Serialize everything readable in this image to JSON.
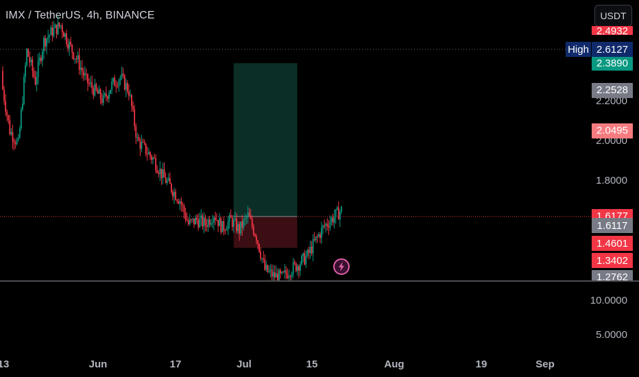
{
  "header": {
    "title": "IMX / TetherUS, 4h, BINANCE",
    "currency_button": "USDT"
  },
  "price_tags": [
    {
      "label": "2.4932",
      "color": "#f23645",
      "price": 2.63,
      "partial": true
    },
    {
      "label": "2.3890",
      "color": "#089981",
      "price": 2.389
    },
    {
      "label": "2.2528",
      "color": "#787b86",
      "price": 2.2528
    },
    {
      "label": "2.0495",
      "color": "#f77c80",
      "price": 2.0495
    },
    {
      "label": "1.6177",
      "color": "#f23645",
      "price": 1.6177
    },
    {
      "label": "1.6117",
      "color": "#787b86",
      "price": 1.6117
    },
    {
      "label": "1.4601",
      "color": "#f23645",
      "price": 1.4601
    },
    {
      "label": "1.3402",
      "color": "#f23645",
      "price": 1.3402
    },
    {
      "label": "1.2762",
      "color": "#787b86",
      "price": 1.2762,
      "partial": true
    }
  ],
  "high_marker": {
    "label": "High",
    "value": "2.6127"
  },
  "volume_axis": {
    "ticks": [
      "10.0000",
      "5.0000"
    ]
  },
  "position_tool": {
    "entry": 1.6177,
    "target": 2.389,
    "stop": 1.4601,
    "start_day": 27,
    "end_day": 34,
    "profit_color": "#0b2f27",
    "loss_color": "#3a0e12"
  },
  "colors": {
    "up": "#089981",
    "down": "#f23645",
    "background": "#000000",
    "dotted_last": "#f23645"
  },
  "icons": {
    "alert": "lightning-icon"
  },
  "chart_data": {
    "type": "candlestick",
    "symbol": "IMX / TetherUS",
    "interval": "4h",
    "exchange": "BINANCE",
    "x_axis_ticks": [
      "13",
      "Jun",
      "17",
      "Jul",
      "15",
      "Aug",
      "19",
      "Sep"
    ],
    "y_axis_ticks": [
      "2.2000",
      "2.0000",
      "1.8000"
    ],
    "ylim": [
      1.27,
      2.75
    ],
    "series": [
      {
        "name": "close",
        "approx_daily_close": [
          2.3,
          2.05,
          1.98,
          2.45,
          2.3,
          2.5,
          2.55,
          2.58,
          2.48,
          2.4,
          2.3,
          2.25,
          2.2,
          2.28,
          2.32,
          2.25,
          2.0,
          1.95,
          1.9,
          1.82,
          1.76,
          1.7,
          1.58,
          1.6,
          1.58,
          1.63,
          1.56,
          1.6,
          1.55,
          1.62,
          1.52,
          1.35,
          1.32,
          1.31,
          1.35,
          1.38,
          1.42,
          1.5,
          1.57,
          1.61,
          1.65
        ]
      }
    ],
    "last_price": 1.6177,
    "high": 2.6127,
    "grid": false,
    "legend": "none"
  }
}
